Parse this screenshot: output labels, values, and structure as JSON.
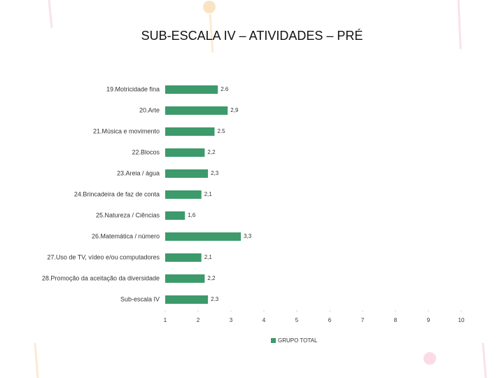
{
  "chart_data": {
    "type": "bar",
    "orientation": "horizontal",
    "title": "SUB-ESCALA IV – ATIVIDADES – PRÉ",
    "categories": [
      "19.Motricidade fina",
      "20.Arte",
      "21.Música e movimento",
      "22.Blocos",
      "23.Areia / água",
      "24.Brincadeira de faz de conta",
      "25.Natureza / Ciências",
      "26.Matemática / número",
      "27.Uso de TV, vídeo e/ou computadores",
      "28.Promoção da aceitação da diversidade",
      "Sub-escala IV"
    ],
    "series": [
      {
        "name": "GRUPO TOTAL",
        "color": "#3c9a6b",
        "values": [
          2.6,
          2.9,
          2.5,
          2.2,
          2.3,
          2.1,
          1.6,
          3.3,
          2.1,
          2.2,
          2.3
        ],
        "value_labels": [
          "2.6",
          "2,9",
          "2.5",
          "2,2",
          "2,3",
          "2,1",
          "1,6",
          "3,3",
          "2,1",
          "2,2",
          "2.3"
        ]
      }
    ],
    "xlim": [
      1,
      10
    ],
    "xticks": [
      1,
      2,
      3,
      4,
      5,
      6,
      7,
      8,
      9,
      10
    ],
    "legend": "bottom"
  }
}
